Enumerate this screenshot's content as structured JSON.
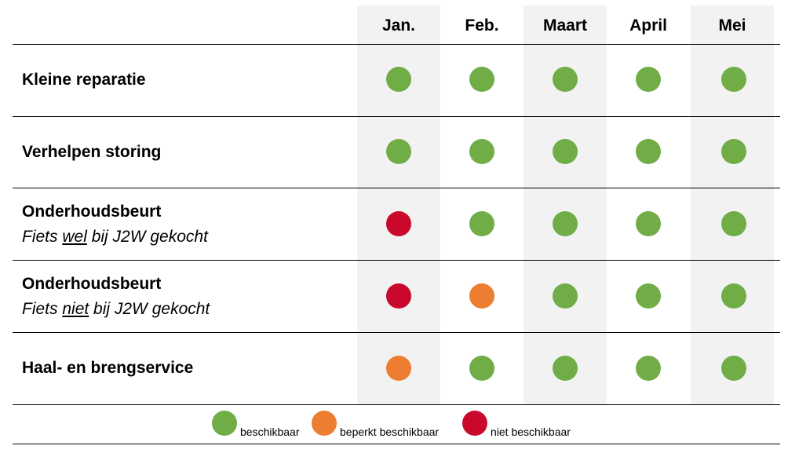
{
  "colors": {
    "available": "#70ad47",
    "limited": "#ed7d31",
    "unavailable": "#c9082c",
    "shade": "#f2f2f2"
  },
  "months": [
    "Jan.",
    "Feb.",
    "Maart",
    "April",
    "Mei"
  ],
  "rows": [
    {
      "title": "Kleine reparatie",
      "status": [
        "available",
        "available",
        "available",
        "available",
        "available"
      ]
    },
    {
      "title": "Verhelpen storing",
      "status": [
        "available",
        "available",
        "available",
        "available",
        "available"
      ]
    },
    {
      "title": "Onderhoudsbeurt",
      "sub_before": "Fiets ",
      "sub_em": "wel",
      "sub_after": " bij J2W gekocht",
      "status": [
        "unavailable",
        "available",
        "available",
        "available",
        "available"
      ]
    },
    {
      "title": "Onderhoudsbeurt",
      "sub_before": "Fiets ",
      "sub_em": "niet",
      "sub_after": " bij J2W gekocht",
      "status": [
        "unavailable",
        "limited",
        "available",
        "available",
        "available"
      ]
    },
    {
      "title": "Haal- en brengservice",
      "status": [
        "limited",
        "available",
        "available",
        "available",
        "available"
      ]
    }
  ],
  "legend": [
    {
      "status": "available",
      "label": "beschikbaar"
    },
    {
      "status": "limited",
      "label": "beperkt beschikbaar"
    },
    {
      "status": "unavailable",
      "label": "niet beschikbaar"
    }
  ]
}
